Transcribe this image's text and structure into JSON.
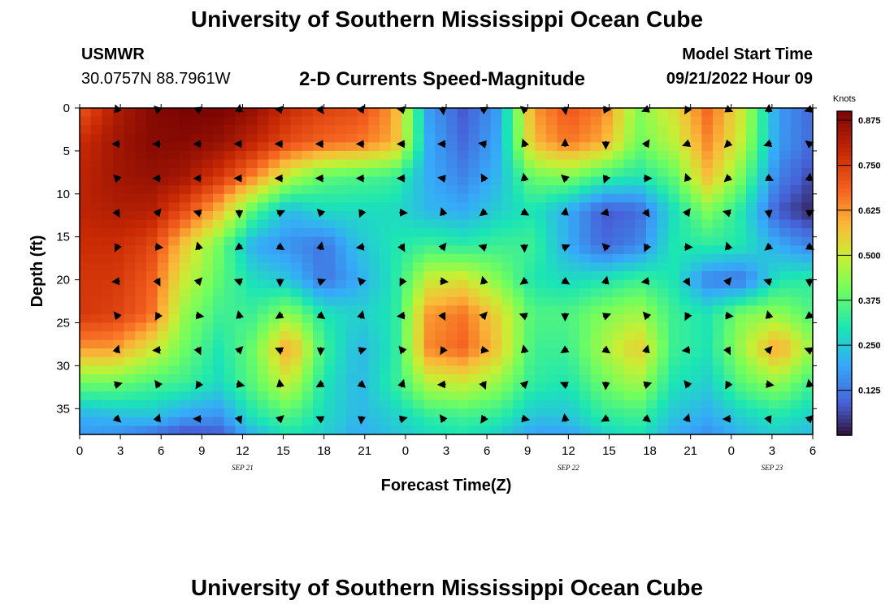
{
  "header": {
    "title": "University of Southern Mississippi Ocean Cube",
    "station": "USMWR",
    "coordinates": "30.0757N  88.7961W",
    "plot_title": "2-D Currents Speed-Magnitude",
    "model_start_label": "Model Start Time",
    "model_start_value": "09/21/2022 Hour 09"
  },
  "footer": {
    "title": "University of Southern Mississippi Ocean Cube"
  },
  "chart_data": {
    "type": "heatmap",
    "title": "2-D Currents Speed-Magnitude",
    "xlabel": "Forecast Time(Z)",
    "ylabel": "Depth (ft)",
    "x_range_hours": [
      0,
      54
    ],
    "y_range_ft": [
      0,
      38
    ],
    "y_inverted": true,
    "x_tick_values": [
      0,
      3,
      6,
      9,
      12,
      15,
      18,
      21,
      24,
      27,
      30,
      33,
      36,
      39,
      42,
      45,
      48,
      51,
      54
    ],
    "x_tick_labels": [
      "0",
      "3",
      "6",
      "9",
      "12",
      "15",
      "18",
      "21",
      "0",
      "3",
      "6",
      "9",
      "12",
      "15",
      "18",
      "21",
      "0",
      "3",
      "6"
    ],
    "y_tick_values": [
      0,
      5,
      10,
      15,
      20,
      25,
      30,
      35
    ],
    "y_tick_labels": [
      "0",
      "5",
      "10",
      "15",
      "20",
      "25",
      "30",
      "35"
    ],
    "date_labels": [
      {
        "x": 12,
        "text": "SEP 21"
      },
      {
        "x": 36,
        "text": "SEP 22"
      },
      {
        "x": 51,
        "text": "SEP 23"
      }
    ],
    "colorbar": {
      "label": "Knots",
      "range": [
        0.0,
        0.9
      ],
      "tick_values": [
        0.125,
        0.25,
        0.375,
        0.5,
        0.625,
        0.75,
        0.875
      ],
      "tick_labels": [
        "0.125",
        "0.250",
        "0.375",
        "0.500",
        "0.625",
        "0.750",
        "0.875"
      ]
    },
    "grid": false,
    "legend": "right",
    "vector_x_hours": [
      3,
      6,
      9,
      12,
      15,
      18,
      21,
      24,
      27,
      30,
      33,
      36,
      39,
      42,
      45,
      48,
      51,
      54
    ],
    "vector_depths_ft": [
      0,
      4,
      8,
      12,
      16,
      20,
      24,
      28,
      32,
      36
    ],
    "speed_rows": [
      {
        "depth": 0,
        "values": [
          0.7,
          0.82,
          0.88,
          0.9,
          0.9,
          0.86,
          0.78,
          0.74,
          0.72,
          0.62,
          0.18,
          0.08,
          0.18,
          0.62,
          0.7,
          0.65,
          0.42,
          0.52,
          0.68,
          0.5,
          0.18,
          0.1
        ]
      },
      {
        "depth": 4,
        "values": [
          0.78,
          0.84,
          0.88,
          0.88,
          0.86,
          0.8,
          0.72,
          0.68,
          0.66,
          0.6,
          0.2,
          0.1,
          0.2,
          0.58,
          0.66,
          0.6,
          0.4,
          0.48,
          0.64,
          0.48,
          0.18,
          0.1
        ]
      },
      {
        "depth": 8,
        "values": [
          0.8,
          0.84,
          0.86,
          0.84,
          0.76,
          0.64,
          0.48,
          0.38,
          0.36,
          0.34,
          0.2,
          0.14,
          0.22,
          0.4,
          0.42,
          0.34,
          0.3,
          0.38,
          0.58,
          0.4,
          0.14,
          0.06
        ]
      },
      {
        "depth": 12,
        "values": [
          0.8,
          0.82,
          0.82,
          0.72,
          0.58,
          0.36,
          0.22,
          0.28,
          0.28,
          0.28,
          0.22,
          0.2,
          0.26,
          0.3,
          0.2,
          0.08,
          0.1,
          0.28,
          0.42,
          0.3,
          0.08,
          0.02
        ]
      },
      {
        "depth": 16,
        "values": [
          0.78,
          0.78,
          0.74,
          0.56,
          0.4,
          0.2,
          0.16,
          0.12,
          0.24,
          0.3,
          0.34,
          0.32,
          0.34,
          0.34,
          0.2,
          0.1,
          0.14,
          0.3,
          0.32,
          0.3,
          0.2,
          0.14
        ]
      },
      {
        "depth": 20,
        "values": [
          0.76,
          0.76,
          0.7,
          0.5,
          0.38,
          0.28,
          0.24,
          0.12,
          0.2,
          0.3,
          0.5,
          0.52,
          0.42,
          0.3,
          0.28,
          0.3,
          0.34,
          0.3,
          0.14,
          0.12,
          0.3,
          0.32
        ]
      },
      {
        "depth": 24,
        "values": [
          0.76,
          0.74,
          0.68,
          0.44,
          0.34,
          0.34,
          0.44,
          0.3,
          0.26,
          0.3,
          0.62,
          0.66,
          0.54,
          0.36,
          0.36,
          0.42,
          0.46,
          0.34,
          0.3,
          0.42,
          0.44,
          0.36
        ]
      },
      {
        "depth": 28,
        "values": [
          0.62,
          0.62,
          0.52,
          0.4,
          0.3,
          0.4,
          0.62,
          0.34,
          0.22,
          0.3,
          0.64,
          0.68,
          0.56,
          0.34,
          0.34,
          0.46,
          0.56,
          0.34,
          0.3,
          0.46,
          0.62,
          0.44
        ]
      },
      {
        "depth": 32,
        "values": [
          0.4,
          0.4,
          0.36,
          0.34,
          0.28,
          0.38,
          0.5,
          0.3,
          0.22,
          0.32,
          0.48,
          0.5,
          0.44,
          0.32,
          0.3,
          0.4,
          0.46,
          0.3,
          0.26,
          0.38,
          0.44,
          0.34
        ]
      },
      {
        "depth": 36,
        "values": [
          0.2,
          0.22,
          0.24,
          0.18,
          0.16,
          0.3,
          0.36,
          0.28,
          0.22,
          0.26,
          0.32,
          0.34,
          0.32,
          0.24,
          0.24,
          0.32,
          0.34,
          0.24,
          0.2,
          0.26,
          0.3,
          0.26
        ]
      },
      {
        "depth": 38,
        "values": [
          0.18,
          0.16,
          0.12,
          0.06,
          0.08,
          0.22,
          0.3,
          0.26,
          0.2,
          0.24,
          0.28,
          0.3,
          0.26,
          0.18,
          0.18,
          0.26,
          0.3,
          0.2,
          0.16,
          0.22,
          0.26,
          0.22
        ]
      }
    ],
    "speed_x_hours": [
      0,
      2.57,
      5.14,
      7.71,
      10.29,
      12.86,
      15.43,
      18,
      20.57,
      23.14,
      25.71,
      28.29,
      30.86,
      33.43,
      36,
      38.57,
      41.14,
      43.71,
      46.29,
      48.86,
      51.43,
      54
    ],
    "vector_angles_deg": [
      [
        null,
        135,
        160,
        null,
        170,
        null,
        null,
        null,
        null,
        null,
        null,
        280,
        null,
        200,
        240,
        null,
        null,
        null,
        null,
        null,
        null,
        null
      ],
      [
        180,
        180,
        180,
        180,
        180,
        180,
        180,
        180,
        180,
        170,
        110,
        90,
        270,
        null,
        200,
        225,
        200,
        null,
        null,
        110,
        null,
        null
      ],
      [
        135,
        180,
        180,
        180,
        180,
        180,
        180,
        180,
        170,
        120,
        100,
        null,
        null,
        null,
        null,
        null,
        null,
        null,
        null,
        null,
        null,
        null
      ]
    ]
  }
}
